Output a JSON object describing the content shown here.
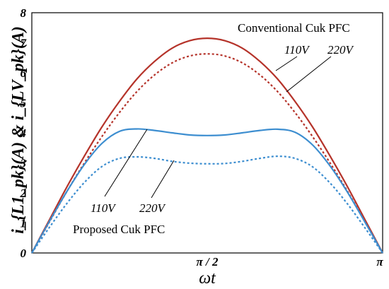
{
  "chart_data": {
    "type": "line",
    "xlabel": "ωt",
    "ylabel": "i_{L1_pk}(A) & i_{LV_pk}(A)",
    "ylim": [
      0,
      8
    ],
    "yticks": [
      "0",
      "1",
      "2",
      "3",
      "4",
      "5",
      "6",
      "7",
      "8"
    ],
    "xticks": [
      {
        "value": 0,
        "label": ""
      },
      {
        "value": 0.5,
        "label": "π / 2"
      },
      {
        "value": 1,
        "label": "π"
      }
    ],
    "x_units": "fraction of π",
    "x": [
      0,
      0.05,
      0.1,
      0.15,
      0.2,
      0.25,
      0.3,
      0.35,
      0.4,
      0.45,
      0.5,
      0.55,
      0.6,
      0.65,
      0.7,
      0.75,
      0.8,
      0.85,
      0.9,
      0.95,
      1
    ],
    "series": [
      {
        "group": "Conventional Cuk PFC",
        "name": "110V",
        "style": "solid",
        "color": "#b5332a",
        "values": [
          0,
          1.1,
          2.2,
          3.23,
          4.2,
          5.05,
          5.8,
          6.38,
          6.82,
          7.07,
          7.15,
          7.07,
          6.82,
          6.38,
          5.8,
          5.05,
          4.2,
          3.23,
          2.2,
          1.1,
          0
        ]
      },
      {
        "group": "Conventional Cuk PFC",
        "name": "220V",
        "style": "dashed",
        "color": "#b5332a",
        "values": [
          0,
          1.03,
          2.05,
          3.0,
          3.88,
          4.68,
          5.38,
          5.93,
          6.33,
          6.56,
          6.63,
          6.56,
          6.33,
          5.93,
          5.38,
          4.68,
          3.88,
          3.0,
          2.05,
          1.03,
          0
        ]
      },
      {
        "group": "Proposed Cuk PFC",
        "name": "110V",
        "style": "solid",
        "color": "#3d8ed0",
        "values": [
          0,
          1.05,
          2.05,
          2.95,
          3.65,
          4.05,
          4.13,
          4.08,
          4.0,
          3.93,
          3.91,
          3.93,
          4.0,
          4.08,
          4.12,
          4.02,
          3.6,
          2.9,
          2.02,
          1.02,
          0
        ]
      },
      {
        "group": "Proposed Cuk PFC",
        "name": "220V",
        "style": "dashed",
        "color": "#3d8ed0",
        "values": [
          0,
          0.85,
          1.65,
          2.35,
          2.88,
          3.15,
          3.2,
          3.15,
          3.05,
          2.99,
          2.97,
          2.98,
          3.05,
          3.15,
          3.22,
          3.15,
          2.87,
          2.33,
          1.63,
          0.83,
          0
        ]
      }
    ],
    "annotations": {
      "conventional_label": "Conventional Cuk PFC",
      "proposed_label": "Proposed Cuk PFC",
      "conv_110": "110V",
      "conv_220": "220V",
      "prop_110": "110V",
      "prop_220": "220V"
    },
    "grid": false,
    "legend": "none"
  }
}
